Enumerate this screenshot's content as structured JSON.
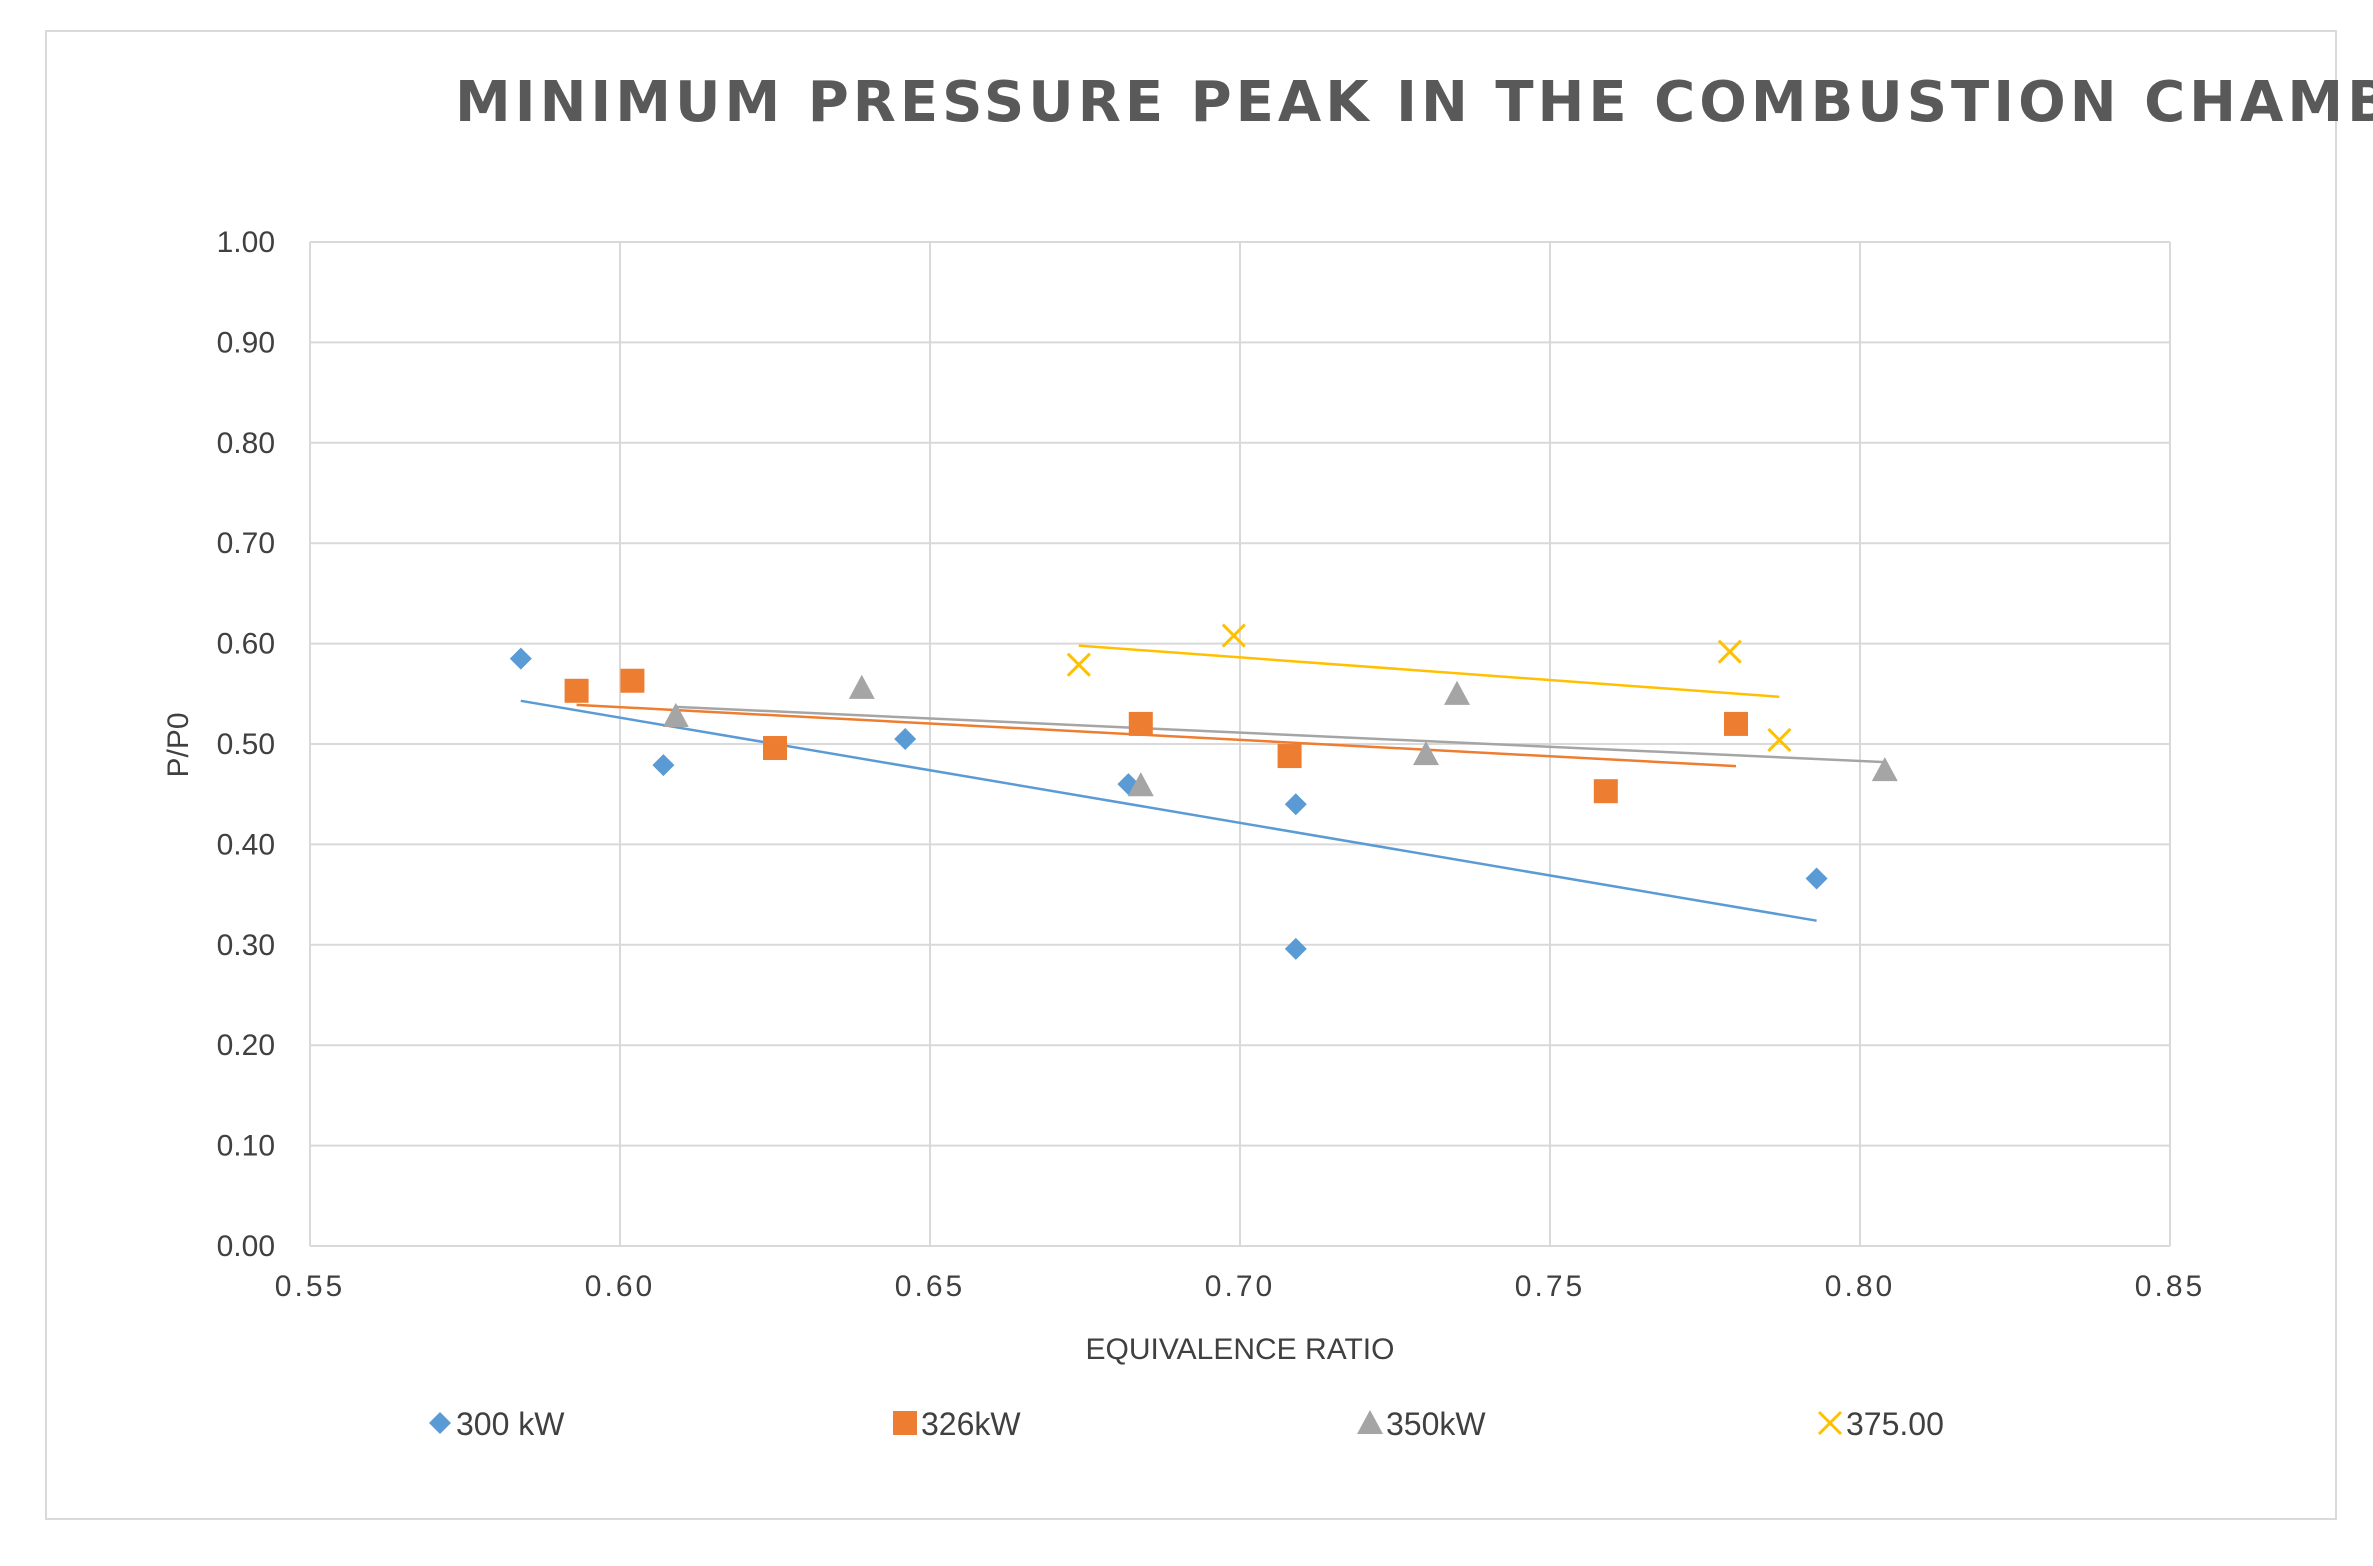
{
  "chart_data": {
    "type": "scatter",
    "title": "MINIMUM PRESSURE PEAK IN THE COMBUSTION CHAMBER",
    "xlabel": "EQUIVALENCE RATIO",
    "ylabel": "P/P0",
    "xlim": [
      0.55,
      0.85
    ],
    "ylim": [
      0.0,
      1.0
    ],
    "x_ticks": [
      "0.55",
      "0.60",
      "0.65",
      "0.70",
      "0.75",
      "0.80",
      "0.85"
    ],
    "y_ticks": [
      "0.00",
      "0.10",
      "0.20",
      "0.30",
      "0.40",
      "0.50",
      "0.60",
      "0.70",
      "0.80",
      "0.90",
      "1.00"
    ],
    "grid": true,
    "legend_position": "bottom",
    "series": [
      {
        "name": "300 kW",
        "color": "#5b9bd5",
        "marker": "diamond",
        "points": [
          [
            0.584,
            0.585
          ],
          [
            0.607,
            0.479
          ],
          [
            0.646,
            0.505
          ],
          [
            0.682,
            0.46
          ],
          [
            0.709,
            0.44
          ],
          [
            0.709,
            0.296
          ],
          [
            0.793,
            0.366
          ]
        ],
        "trendline": [
          [
            0.584,
            0.543
          ],
          [
            0.793,
            0.324
          ]
        ]
      },
      {
        "name": "326kW",
        "color": "#ed7d31",
        "marker": "square",
        "points": [
          [
            0.593,
            0.553
          ],
          [
            0.602,
            0.563
          ],
          [
            0.625,
            0.496
          ],
          [
            0.684,
            0.52
          ],
          [
            0.708,
            0.488
          ],
          [
            0.759,
            0.453
          ],
          [
            0.78,
            0.52
          ]
        ],
        "trendline": [
          [
            0.593,
            0.539
          ],
          [
            0.78,
            0.478
          ]
        ]
      },
      {
        "name": "350kW",
        "color": "#a5a5a5",
        "marker": "triangle",
        "points": [
          [
            0.609,
            0.528
          ],
          [
            0.639,
            0.556
          ],
          [
            0.684,
            0.459
          ],
          [
            0.73,
            0.49
          ],
          [
            0.735,
            0.55
          ],
          [
            0.804,
            0.474
          ]
        ],
        "trendline": [
          [
            0.609,
            0.537
          ],
          [
            0.804,
            0.482
          ]
        ]
      },
      {
        "name": "375.00",
        "color": "#ffc000",
        "marker": "x",
        "points": [
          [
            0.674,
            0.579
          ],
          [
            0.699,
            0.608
          ],
          [
            0.779,
            0.592
          ],
          [
            0.787,
            0.504
          ]
        ],
        "trendline": [
          [
            0.674,
            0.598
          ],
          [
            0.787,
            0.547
          ]
        ]
      }
    ]
  }
}
